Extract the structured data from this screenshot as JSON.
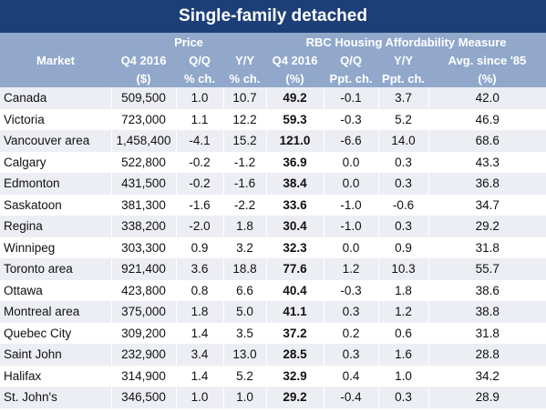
{
  "title": "Single-family detached",
  "table": {
    "groups": [
      "Price",
      "RBC Housing Affordability Measure"
    ],
    "columns": [
      {
        "label": "Market"
      },
      {
        "label": "Q4 2016",
        "unit": "($)"
      },
      {
        "label": "Q/Q",
        "unit": "% ch."
      },
      {
        "label": "Y/Y",
        "unit": "% ch."
      },
      {
        "label": "Q4 2016",
        "unit": "(%)"
      },
      {
        "label": "Q/Q",
        "unit": "Ppt. ch."
      },
      {
        "label": "Y/Y",
        "unit": "Ppt. ch."
      },
      {
        "label": "Avg. since '85",
        "unit": "(%)"
      }
    ],
    "rows": [
      [
        "Canada",
        "509,500",
        "1.0",
        "10.7",
        "49.2",
        "-0.1",
        "3.7",
        "42.0"
      ],
      [
        "Victoria",
        "723,000",
        "1.1",
        "12.2",
        "59.3",
        "-0.3",
        "5.2",
        "46.9"
      ],
      [
        "Vancouver area",
        "1,458,400",
        "-4.1",
        "15.2",
        "121.0",
        "-6.6",
        "14.0",
        "68.6"
      ],
      [
        "Calgary",
        "522,800",
        "-0.2",
        "-1.2",
        "36.9",
        "0.0",
        "0.3",
        "43.3"
      ],
      [
        "Edmonton",
        "431,500",
        "-0.2",
        "-1.6",
        "38.4",
        "0.0",
        "0.3",
        "36.8"
      ],
      [
        "Saskatoon",
        "381,300",
        "-1.6",
        "-2.2",
        "33.6",
        "-1.0",
        "-0.6",
        "34.7"
      ],
      [
        "Regina",
        "338,200",
        "-2.0",
        "1.8",
        "30.4",
        "-1.0",
        "0.3",
        "29.2"
      ],
      [
        "Winnipeg",
        "303,300",
        "0.9",
        "3.2",
        "32.3",
        "0.0",
        "0.9",
        "31.8"
      ],
      [
        "Toronto area",
        "921,400",
        "3.6",
        "18.8",
        "77.6",
        "1.2",
        "10.3",
        "55.7"
      ],
      [
        "Ottawa",
        "423,800",
        "0.8",
        "6.6",
        "40.4",
        "-0.3",
        "1.8",
        "38.6"
      ],
      [
        "Montreal area",
        "375,000",
        "1.8",
        "5.0",
        "41.1",
        "0.3",
        "1.2",
        "38.8"
      ],
      [
        "Quebec City",
        "309,200",
        "1.4",
        "3.5",
        "37.2",
        "0.2",
        "0.6",
        "31.8"
      ],
      [
        "Saint John",
        "232,900",
        "3.4",
        "13.0",
        "28.5",
        "0.3",
        "1.6",
        "28.8"
      ],
      [
        "Halifax",
        "314,900",
        "1.4",
        "5.2",
        "32.9",
        "0.4",
        "1.0",
        "34.2"
      ],
      [
        "St. John's",
        "346,500",
        "1.0",
        "1.0",
        "29.2",
        "-0.4",
        "0.3",
        "28.9"
      ]
    ]
  }
}
